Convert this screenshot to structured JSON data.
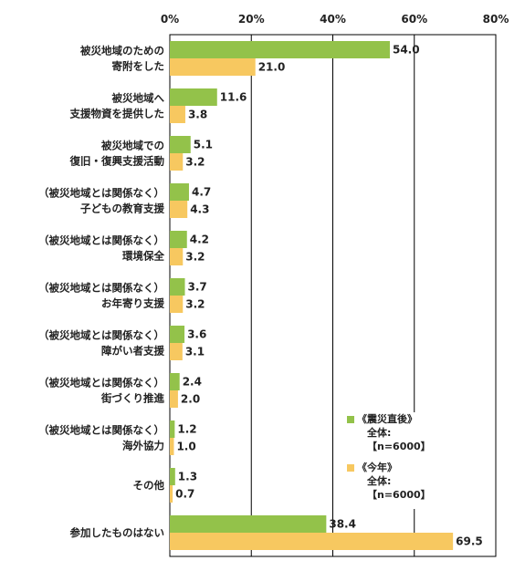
{
  "chart_data": {
    "type": "bar",
    "orientation": "horizontal",
    "xlim": [
      0,
      80
    ],
    "x_ticks": [
      "0%",
      "20%",
      "40%",
      "60%",
      "80%"
    ],
    "x_tick_values": [
      0,
      20,
      40,
      60,
      80
    ],
    "grid": "vertical lines at 20, 40, 60, 80",
    "categories": [
      [
        "被災地域のための",
        "寄附をした"
      ],
      [
        "被災地域へ",
        "支援物資を提供した"
      ],
      [
        "被災地域での",
        "復旧・復興支援活動"
      ],
      [
        "（被災地域とは関係なく）",
        "子どもの教育支援"
      ],
      [
        "（被災地域とは関係なく）",
        "環境保全"
      ],
      [
        "（被災地域とは関係なく）",
        "お年寄り支援"
      ],
      [
        "（被災地域とは関係なく）",
        "障がい者支援"
      ],
      [
        "（被災地域とは関係なく）",
        "街づくり推進"
      ],
      [
        "（被災地域とは関係なく）",
        "海外協力"
      ],
      [
        "その他"
      ],
      [
        "参加したものはない"
      ]
    ],
    "series": [
      {
        "name": "《震災直後》",
        "note": "全体:【n=6000】",
        "color": "#93c24a",
        "values": [
          54.0,
          11.6,
          5.1,
          4.7,
          4.2,
          3.7,
          3.6,
          2.4,
          1.2,
          1.3,
          38.4
        ],
        "labels": [
          "54.0",
          "11.6",
          "5.1",
          "4.7",
          "4.2",
          "3.7",
          "3.6",
          "2.4",
          "1.2",
          "1.3",
          "38.4"
        ]
      },
      {
        "name": "《今年》",
        "note": "全体:【n=6000】",
        "color": "#f7c860",
        "values": [
          21.0,
          3.8,
          3.2,
          4.3,
          3.2,
          3.2,
          3.1,
          2.0,
          1.0,
          0.7,
          69.5
        ],
        "labels": [
          "21.0",
          "3.8",
          "3.2",
          "4.3",
          "3.2",
          "3.2",
          "3.1",
          "2.0",
          "1.0",
          "0.7",
          "69.5"
        ]
      }
    ],
    "legend_position": "lower-right"
  }
}
